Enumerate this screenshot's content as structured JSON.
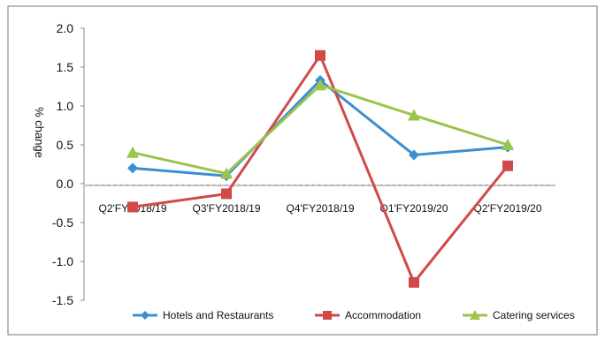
{
  "chart_data": {
    "type": "line",
    "categories": [
      "Q2'FY2018/19",
      "Q3'FY2018/19",
      "Q4'FY2018/19",
      "Q1'FY2019/20",
      "Q2'FY2019/20"
    ],
    "series": [
      {
        "name": "Hotels and Restaurants",
        "values": [
          0.2,
          0.1,
          1.33,
          0.37,
          0.47
        ],
        "color": "#3a8fd1",
        "marker": "diamond"
      },
      {
        "name": "Accommodation",
        "values": [
          -0.3,
          -0.13,
          1.65,
          -1.27,
          0.23
        ],
        "color": "#d04a4a",
        "marker": "square"
      },
      {
        "name": "Catering services",
        "values": [
          0.4,
          0.13,
          1.27,
          0.88,
          0.5
        ],
        "color": "#9bc44d",
        "marker": "triangle"
      }
    ],
    "ylabel": "% change",
    "ylim": [
      -1.5,
      2.0
    ],
    "yticks": [
      "2.0",
      "1.5",
      "1.0",
      "0.5",
      "0.0",
      "-0.5",
      "-1.0",
      "-1.5"
    ],
    "legend": "bottom",
    "grid": false
  }
}
